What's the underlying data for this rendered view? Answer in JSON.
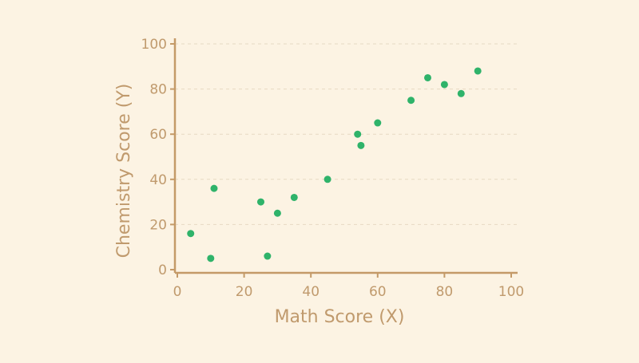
{
  "colors": {
    "background": "#fcf3e3",
    "axis": "#c49a68",
    "text": "#c09a6d",
    "grid": "#e6d9c3",
    "point": "#2fb36a"
  },
  "chart_data": {
    "type": "scatter",
    "xlabel": "Math Score (X)",
    "ylabel": "Chemistry Score (Y)",
    "xlim": [
      0,
      100
    ],
    "ylim": [
      0,
      100
    ],
    "x_ticks": [
      "0",
      "20",
      "40",
      "60",
      "80",
      "100"
    ],
    "y_ticks": [
      "0",
      "20",
      "40",
      "60",
      "80",
      "100"
    ],
    "grid": "horizontal-dashed",
    "legend": "none",
    "points": [
      {
        "x": 4,
        "y": 16
      },
      {
        "x": 10,
        "y": 5
      },
      {
        "x": 11,
        "y": 36
      },
      {
        "x": 25,
        "y": 30
      },
      {
        "x": 27,
        "y": 6
      },
      {
        "x": 30,
        "y": 25
      },
      {
        "x": 35,
        "y": 32
      },
      {
        "x": 45,
        "y": 40
      },
      {
        "x": 54,
        "y": 60
      },
      {
        "x": 55,
        "y": 55
      },
      {
        "x": 60,
        "y": 65
      },
      {
        "x": 70,
        "y": 75
      },
      {
        "x": 75,
        "y": 85
      },
      {
        "x": 80,
        "y": 82
      },
      {
        "x": 85,
        "y": 78
      },
      {
        "x": 90,
        "y": 88
      }
    ]
  }
}
